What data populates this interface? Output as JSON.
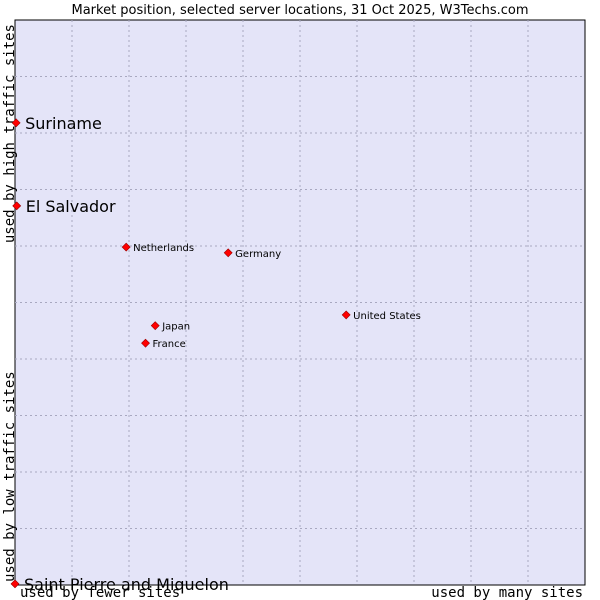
{
  "chart_data": {
    "type": "scatter",
    "title": "Market position, selected server locations, 31 Oct 2025, W3Techs.com",
    "xlabel_low": "used by fewer sites",
    "xlabel_high": "used by many sites",
    "ylabel_low": "used by low traffic sites",
    "ylabel_high": "used by high traffic sites",
    "xlim": [
      0,
      100
    ],
    "ylim": [
      0,
      100
    ],
    "grid": true,
    "x_divisions": 10,
    "y_divisions": 10,
    "points": [
      {
        "label": "Suriname",
        "x": 0.2,
        "y": 81.8,
        "size": "large"
      },
      {
        "label": "El Salvador",
        "x": 0.3,
        "y": 67.1,
        "size": "large"
      },
      {
        "label": "Netherlands",
        "x": 19.5,
        "y": 59.8,
        "size": "small"
      },
      {
        "label": "Germany",
        "x": 37.4,
        "y": 58.8,
        "size": "small"
      },
      {
        "label": "United States",
        "x": 58.1,
        "y": 47.8,
        "size": "small"
      },
      {
        "label": "Japan",
        "x": 24.6,
        "y": 45.9,
        "size": "small"
      },
      {
        "label": "France",
        "x": 22.9,
        "y": 42.8,
        "size": "small"
      },
      {
        "label": "Saint Pierre and Miquelon",
        "x": 0.0,
        "y": 0.2,
        "size": "large"
      }
    ]
  },
  "colors": {
    "plot_bg": "#e4e4f8",
    "grid": "#a8a8c0",
    "marker": "#ff0000",
    "marker_stroke": "#990000"
  }
}
